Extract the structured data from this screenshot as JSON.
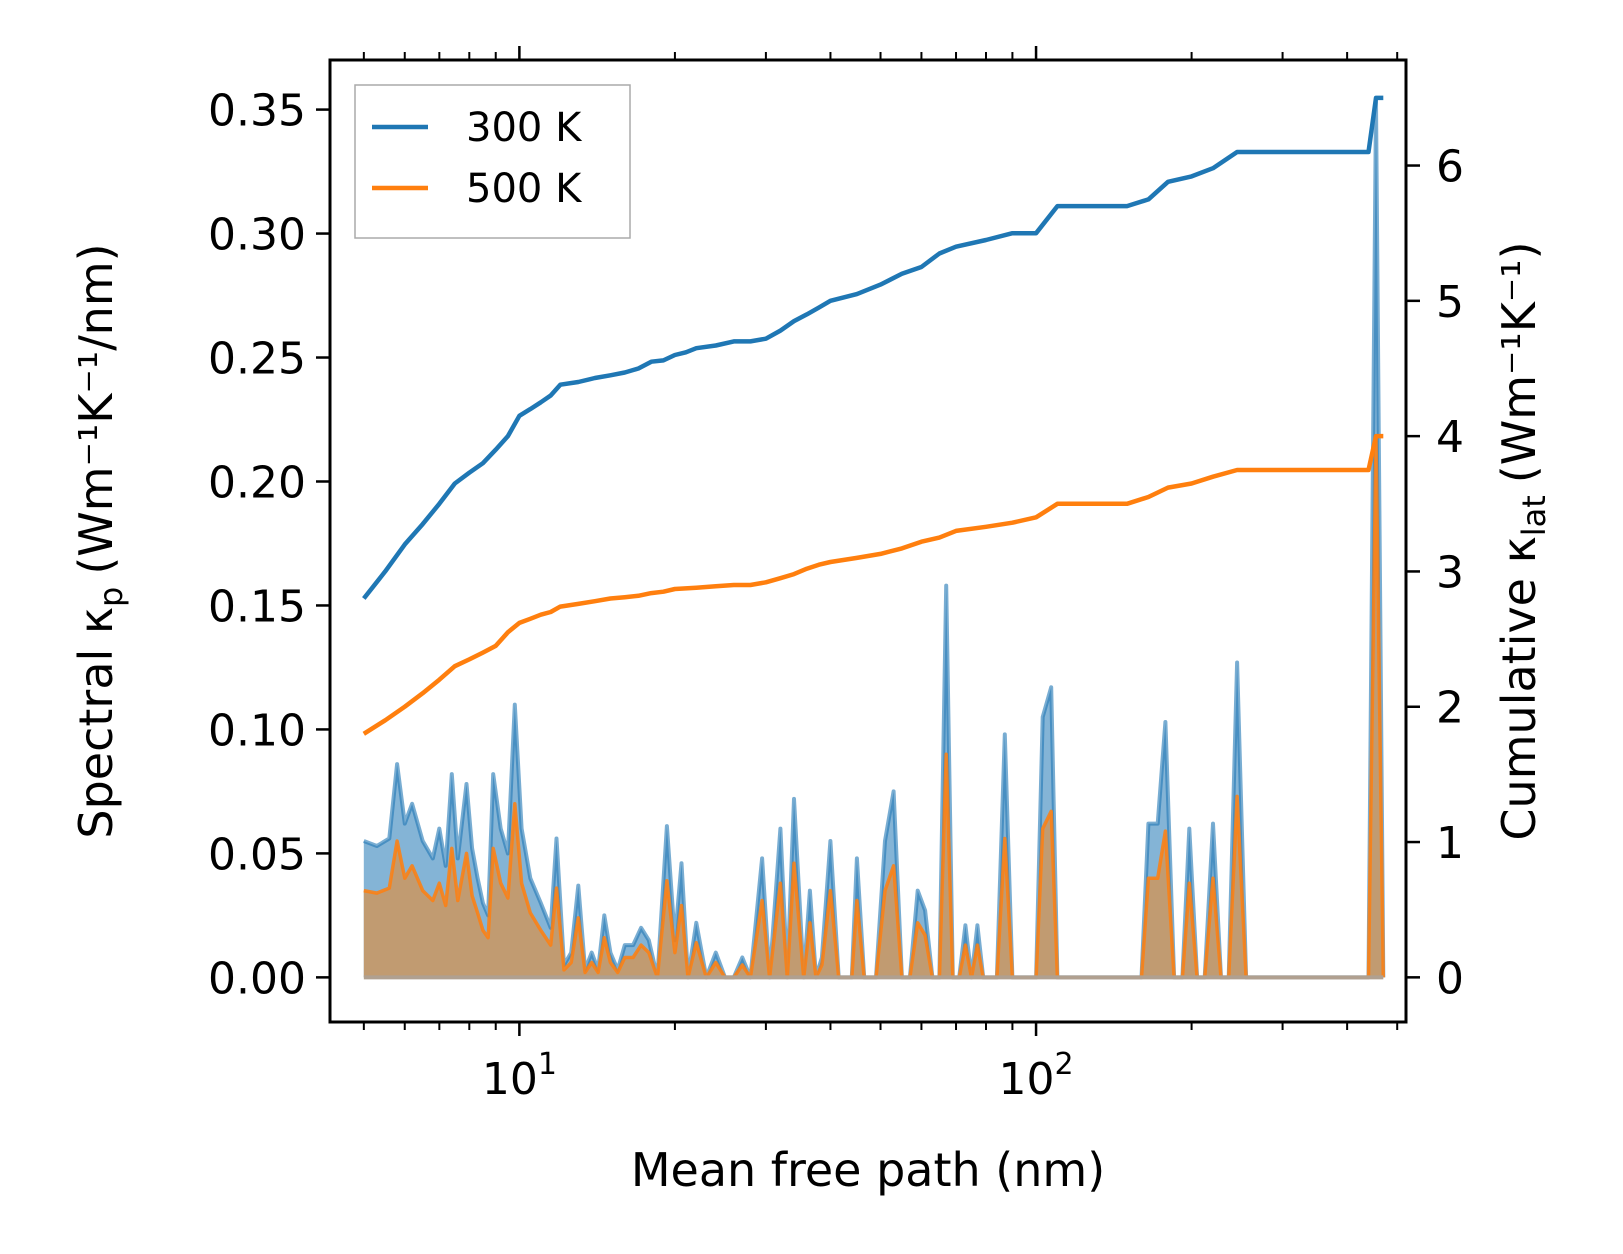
{
  "chart_data": {
    "type": "line",
    "xlabel": "Mean free path (nm)",
    "ylabel_left_text": "Spectral κ",
    "ylabel_left_sub": "p",
    "ylabel_left_units": "(Wm⁻¹K⁻¹/nm)",
    "ylabel_right_text": "Cumulative κ",
    "ylabel_right_sub": "lat",
    "ylabel_right_units": "(Wm⁻¹K⁻¹)",
    "x_scale": "log",
    "xlim": [
      4.3,
      520
    ],
    "x_tick_base": "10",
    "x_major_exponents": [
      "1",
      "2"
    ],
    "x_major_values": [
      10,
      100
    ],
    "ylim_left": [
      -0.018,
      0.37
    ],
    "ylim_right": [
      -0.33,
      6.78
    ],
    "y_left_ticks": [
      0.0,
      0.05,
      0.1,
      0.15,
      0.2,
      0.25,
      0.3,
      0.35
    ],
    "y_left_tick_labels": [
      "0.00",
      "0.05",
      "0.10",
      "0.15",
      "0.20",
      "0.25",
      "0.30",
      "0.35"
    ],
    "y_right_ticks": [
      0,
      1,
      2,
      3,
      4,
      5,
      6
    ],
    "y_right_tick_labels": [
      "0",
      "1",
      "2",
      "3",
      "4",
      "5",
      "6"
    ],
    "legend_position": "top-left",
    "legend": [
      "300 K",
      "500 K"
    ],
    "colors": {
      "s300": "#1f77b4",
      "s500": "#ff7f0e",
      "fill300": "#1f77b4",
      "fill500": "#ff7f0e",
      "overlap": "#c49a6c"
    },
    "spectral_300": [
      [
        5.0,
        0.055
      ],
      [
        5.3,
        0.053
      ],
      [
        5.6,
        0.056
      ],
      [
        5.8,
        0.086
      ],
      [
        6.0,
        0.062
      ],
      [
        6.2,
        0.07
      ],
      [
        6.5,
        0.055
      ],
      [
        6.8,
        0.048
      ],
      [
        7.0,
        0.06
      ],
      [
        7.2,
        0.045
      ],
      [
        7.4,
        0.082
      ],
      [
        7.6,
        0.048
      ],
      [
        7.9,
        0.078
      ],
      [
        8.1,
        0.052
      ],
      [
        8.3,
        0.04
      ],
      [
        8.5,
        0.03
      ],
      [
        8.7,
        0.025
      ],
      [
        8.9,
        0.082
      ],
      [
        9.2,
        0.06
      ],
      [
        9.5,
        0.05
      ],
      [
        9.8,
        0.11
      ],
      [
        10.1,
        0.06
      ],
      [
        10.5,
        0.04
      ],
      [
        11.0,
        0.03
      ],
      [
        11.5,
        0.02
      ],
      [
        11.8,
        0.056
      ],
      [
        12.2,
        0.005
      ],
      [
        12.6,
        0.01
      ],
      [
        13.0,
        0.037
      ],
      [
        13.4,
        0.003
      ],
      [
        13.8,
        0.01
      ],
      [
        14.2,
        0.003
      ],
      [
        14.6,
        0.025
      ],
      [
        15.0,
        0.01
      ],
      [
        15.5,
        0.003
      ],
      [
        16.0,
        0.013
      ],
      [
        16.6,
        0.013
      ],
      [
        17.2,
        0.02
      ],
      [
        17.8,
        0.015
      ],
      [
        18.5,
        0.0
      ],
      [
        19.3,
        0.061
      ],
      [
        20.0,
        0.015
      ],
      [
        20.6,
        0.046
      ],
      [
        21.2,
        0.0
      ],
      [
        22.0,
        0.022
      ],
      [
        23.0,
        0.0
      ],
      [
        24.0,
        0.01
      ],
      [
        25.0,
        0.0
      ],
      [
        26.0,
        0.0
      ],
      [
        27.0,
        0.008
      ],
      [
        28.0,
        0.0
      ],
      [
        29.5,
        0.048
      ],
      [
        30.5,
        0.0
      ],
      [
        32.0,
        0.06
      ],
      [
        33.0,
        0.0
      ],
      [
        34.0,
        0.072
      ],
      [
        35.5,
        0.0
      ],
      [
        36.5,
        0.035
      ],
      [
        37.5,
        0.0
      ],
      [
        38.5,
        0.008
      ],
      [
        40.0,
        0.055
      ],
      [
        41.5,
        0.0
      ],
      [
        44.0,
        0.0
      ],
      [
        45.0,
        0.048
      ],
      [
        46.5,
        0.0
      ],
      [
        49.0,
        0.0
      ],
      [
        51.0,
        0.055
      ],
      [
        53.0,
        0.075
      ],
      [
        55.0,
        0.0
      ],
      [
        57.0,
        0.0
      ],
      [
        59.0,
        0.035
      ],
      [
        61.0,
        0.027
      ],
      [
        63.0,
        0.0
      ],
      [
        65.0,
        0.0
      ],
      [
        67.0,
        0.158
      ],
      [
        69.0,
        0.0
      ],
      [
        71.0,
        0.0
      ],
      [
        73.0,
        0.021
      ],
      [
        75.0,
        0.0
      ],
      [
        77.0,
        0.021
      ],
      [
        79.0,
        0.0
      ],
      [
        84.0,
        0.0
      ],
      [
        87.0,
        0.098
      ],
      [
        90.0,
        0.0
      ],
      [
        100.0,
        0.0
      ],
      [
        103.0,
        0.105
      ],
      [
        107.0,
        0.117
      ],
      [
        110.0,
        0.0
      ],
      [
        120.0,
        0.0
      ],
      [
        160.0,
        0.0
      ],
      [
        165.0,
        0.062
      ],
      [
        172.0,
        0.062
      ],
      [
        178.0,
        0.103
      ],
      [
        185.0,
        0.0
      ],
      [
        192.0,
        0.0
      ],
      [
        198.0,
        0.06
      ],
      [
        205.0,
        0.0
      ],
      [
        212.0,
        0.0
      ],
      [
        220.0,
        0.062
      ],
      [
        228.0,
        0.0
      ],
      [
        236.0,
        0.0
      ],
      [
        245.0,
        0.127
      ],
      [
        255.0,
        0.0
      ],
      [
        440.0,
        0.0
      ],
      [
        455.0,
        0.353
      ],
      [
        470.0,
        0.0
      ]
    ],
    "spectral_500": [
      [
        5.0,
        0.035
      ],
      [
        5.3,
        0.034
      ],
      [
        5.6,
        0.036
      ],
      [
        5.8,
        0.055
      ],
      [
        6.0,
        0.04
      ],
      [
        6.2,
        0.045
      ],
      [
        6.5,
        0.035
      ],
      [
        6.8,
        0.031
      ],
      [
        7.0,
        0.038
      ],
      [
        7.2,
        0.029
      ],
      [
        7.4,
        0.052
      ],
      [
        7.6,
        0.031
      ],
      [
        7.9,
        0.05
      ],
      [
        8.1,
        0.033
      ],
      [
        8.3,
        0.026
      ],
      [
        8.5,
        0.019
      ],
      [
        8.7,
        0.016
      ],
      [
        8.9,
        0.052
      ],
      [
        9.2,
        0.038
      ],
      [
        9.5,
        0.032
      ],
      [
        9.8,
        0.07
      ],
      [
        10.1,
        0.038
      ],
      [
        10.5,
        0.026
      ],
      [
        11.0,
        0.019
      ],
      [
        11.5,
        0.013
      ],
      [
        11.8,
        0.036
      ],
      [
        12.2,
        0.003
      ],
      [
        12.6,
        0.006
      ],
      [
        13.0,
        0.024
      ],
      [
        13.4,
        0.002
      ],
      [
        13.8,
        0.006
      ],
      [
        14.2,
        0.002
      ],
      [
        14.6,
        0.016
      ],
      [
        15.0,
        0.006
      ],
      [
        15.5,
        0.002
      ],
      [
        16.0,
        0.008
      ],
      [
        16.6,
        0.008
      ],
      [
        17.2,
        0.013
      ],
      [
        17.8,
        0.01
      ],
      [
        18.5,
        0.0
      ],
      [
        19.3,
        0.039
      ],
      [
        20.0,
        0.01
      ],
      [
        20.6,
        0.029
      ],
      [
        21.2,
        0.0
      ],
      [
        22.0,
        0.014
      ],
      [
        23.0,
        0.0
      ],
      [
        24.0,
        0.006
      ],
      [
        25.0,
        0.0
      ],
      [
        26.0,
        0.0
      ],
      [
        27.0,
        0.005
      ],
      [
        28.0,
        0.0
      ],
      [
        29.5,
        0.031
      ],
      [
        30.5,
        0.0
      ],
      [
        32.0,
        0.038
      ],
      [
        33.0,
        0.0
      ],
      [
        34.0,
        0.046
      ],
      [
        35.5,
        0.0
      ],
      [
        36.5,
        0.022
      ],
      [
        37.5,
        0.0
      ],
      [
        38.5,
        0.005
      ],
      [
        40.0,
        0.035
      ],
      [
        41.5,
        0.0
      ],
      [
        44.0,
        0.0
      ],
      [
        45.0,
        0.031
      ],
      [
        46.5,
        0.0
      ],
      [
        49.0,
        0.0
      ],
      [
        51.0,
        0.035
      ],
      [
        53.0,
        0.045
      ],
      [
        55.0,
        0.0
      ],
      [
        57.0,
        0.0
      ],
      [
        59.0,
        0.022
      ],
      [
        61.0,
        0.017
      ],
      [
        63.0,
        0.0
      ],
      [
        65.0,
        0.0
      ],
      [
        67.0,
        0.09
      ],
      [
        69.0,
        0.0
      ],
      [
        71.0,
        0.0
      ],
      [
        73.0,
        0.013
      ],
      [
        75.0,
        0.0
      ],
      [
        77.0,
        0.013
      ],
      [
        79.0,
        0.0
      ],
      [
        84.0,
        0.0
      ],
      [
        87.0,
        0.056
      ],
      [
        90.0,
        0.0
      ],
      [
        100.0,
        0.0
      ],
      [
        103.0,
        0.06
      ],
      [
        107.0,
        0.067
      ],
      [
        110.0,
        0.0
      ],
      [
        120.0,
        0.0
      ],
      [
        160.0,
        0.0
      ],
      [
        165.0,
        0.04
      ],
      [
        172.0,
        0.04
      ],
      [
        178.0,
        0.059
      ],
      [
        185.0,
        0.0
      ],
      [
        192.0,
        0.0
      ],
      [
        198.0,
        0.038
      ],
      [
        205.0,
        0.0
      ],
      [
        212.0,
        0.0
      ],
      [
        220.0,
        0.04
      ],
      [
        228.0,
        0.0
      ],
      [
        236.0,
        0.0
      ],
      [
        245.0,
        0.073
      ],
      [
        255.0,
        0.0
      ],
      [
        440.0,
        0.0
      ],
      [
        455.0,
        0.218
      ],
      [
        470.0,
        0.0
      ]
    ],
    "cumulative_300": [
      [
        5.0,
        2.8
      ],
      [
        5.5,
        3.0
      ],
      [
        6.0,
        3.2
      ],
      [
        6.5,
        3.35
      ],
      [
        7.0,
        3.5
      ],
      [
        7.5,
        3.65
      ],
      [
        8.0,
        3.73
      ],
      [
        8.5,
        3.8
      ],
      [
        9.0,
        3.9
      ],
      [
        9.5,
        4.0
      ],
      [
        10.0,
        4.15
      ],
      [
        10.5,
        4.2
      ],
      [
        11.0,
        4.25
      ],
      [
        11.5,
        4.3
      ],
      [
        12.0,
        4.38
      ],
      [
        13.0,
        4.4
      ],
      [
        14.0,
        4.43
      ],
      [
        15.0,
        4.45
      ],
      [
        16.0,
        4.47
      ],
      [
        17.0,
        4.5
      ],
      [
        18.0,
        4.55
      ],
      [
        19.0,
        4.56
      ],
      [
        20.0,
        4.6
      ],
      [
        21.0,
        4.62
      ],
      [
        22.0,
        4.65
      ],
      [
        24.0,
        4.67
      ],
      [
        26.0,
        4.7
      ],
      [
        28.0,
        4.7
      ],
      [
        30.0,
        4.72
      ],
      [
        32.0,
        4.78
      ],
      [
        34.0,
        4.85
      ],
      [
        36.0,
        4.9
      ],
      [
        38.0,
        4.95
      ],
      [
        40.0,
        5.0
      ],
      [
        45.0,
        5.05
      ],
      [
        50.0,
        5.12
      ],
      [
        55.0,
        5.2
      ],
      [
        60.0,
        5.25
      ],
      [
        65.0,
        5.35
      ],
      [
        70.0,
        5.4
      ],
      [
        80.0,
        5.45
      ],
      [
        90.0,
        5.5
      ],
      [
        100.0,
        5.5
      ],
      [
        110.0,
        5.7
      ],
      [
        130.0,
        5.7
      ],
      [
        150.0,
        5.7
      ],
      [
        165.0,
        5.75
      ],
      [
        180.0,
        5.88
      ],
      [
        200.0,
        5.92
      ],
      [
        220.0,
        5.98
      ],
      [
        245.0,
        6.1
      ],
      [
        300.0,
        6.1
      ],
      [
        440.0,
        6.1
      ],
      [
        455.0,
        6.5
      ],
      [
        470.0,
        6.5
      ]
    ],
    "cumulative_500": [
      [
        5.0,
        1.8
      ],
      [
        5.5,
        1.9
      ],
      [
        6.0,
        2.0
      ],
      [
        6.5,
        2.1
      ],
      [
        7.0,
        2.2
      ],
      [
        7.5,
        2.3
      ],
      [
        8.0,
        2.35
      ],
      [
        8.5,
        2.4
      ],
      [
        9.0,
        2.45
      ],
      [
        9.5,
        2.55
      ],
      [
        10.0,
        2.62
      ],
      [
        10.5,
        2.65
      ],
      [
        11.0,
        2.68
      ],
      [
        11.5,
        2.7
      ],
      [
        12.0,
        2.74
      ],
      [
        13.0,
        2.76
      ],
      [
        14.0,
        2.78
      ],
      [
        15.0,
        2.8
      ],
      [
        16.0,
        2.81
      ],
      [
        17.0,
        2.82
      ],
      [
        18.0,
        2.84
      ],
      [
        19.0,
        2.85
      ],
      [
        20.0,
        2.87
      ],
      [
        22.0,
        2.88
      ],
      [
        24.0,
        2.89
      ],
      [
        26.0,
        2.9
      ],
      [
        28.0,
        2.9
      ],
      [
        30.0,
        2.92
      ],
      [
        32.0,
        2.95
      ],
      [
        34.0,
        2.98
      ],
      [
        36.0,
        3.02
      ],
      [
        38.0,
        3.05
      ],
      [
        40.0,
        3.07
      ],
      [
        45.0,
        3.1
      ],
      [
        50.0,
        3.13
      ],
      [
        55.0,
        3.17
      ],
      [
        60.0,
        3.22
      ],
      [
        65.0,
        3.25
      ],
      [
        70.0,
        3.3
      ],
      [
        80.0,
        3.33
      ],
      [
        90.0,
        3.36
      ],
      [
        100.0,
        3.4
      ],
      [
        110.0,
        3.5
      ],
      [
        130.0,
        3.5
      ],
      [
        150.0,
        3.5
      ],
      [
        165.0,
        3.55
      ],
      [
        180.0,
        3.62
      ],
      [
        200.0,
        3.65
      ],
      [
        220.0,
        3.7
      ],
      [
        245.0,
        3.75
      ],
      [
        300.0,
        3.75
      ],
      [
        440.0,
        3.75
      ],
      [
        455.0,
        4.0
      ],
      [
        470.0,
        4.0
      ]
    ]
  }
}
